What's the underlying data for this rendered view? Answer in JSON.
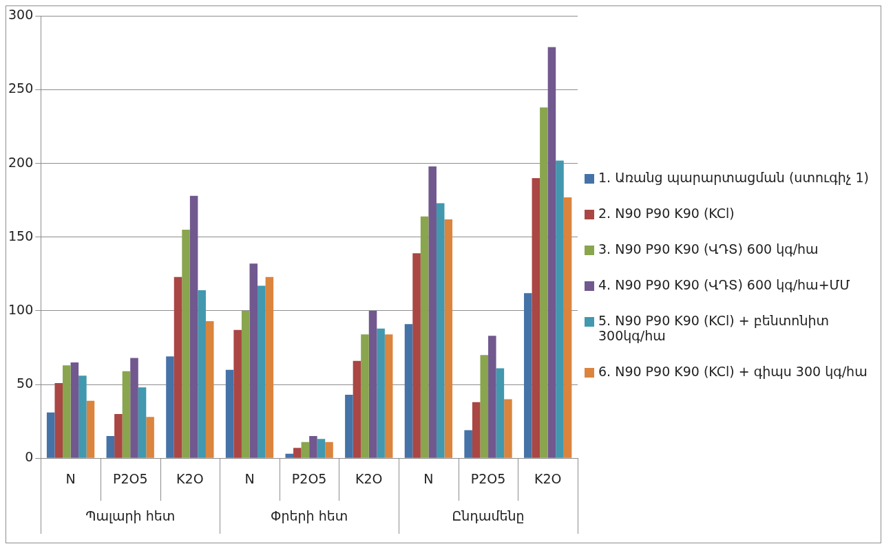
{
  "chart_data": {
    "type": "bar",
    "categories": [
      "N",
      "P2O5",
      "K2O",
      "N",
      "P2O5",
      "K2O",
      "N",
      "P2O5",
      "K2O"
    ],
    "series": [
      {
        "name": "1. Առանց պարարտացման (ստուգիչ 1)",
        "color": "#4572a7",
        "values": [
          31,
          15,
          69,
          60,
          3,
          43,
          91,
          19,
          112
        ]
      },
      {
        "name": "2.   N90 P90 K90 (KCl)",
        "color": "#aa4643",
        "values": [
          51,
          30,
          123,
          87,
          7,
          66,
          139,
          38,
          190
        ]
      },
      {
        "name": "3. N90 P90 K90 (ՎԴՏ) 600 կգ/հա",
        "color": "#89a54e",
        "values": [
          63,
          59,
          155,
          100,
          11,
          84,
          164,
          70,
          238
        ]
      },
      {
        "name": "4. N90 P90 K90 (ՎԴՏ) 600 կգ/հա+ՄՄ",
        "color": "#71588f",
        "values": [
          65,
          68,
          178,
          132,
          15,
          100,
          198,
          83,
          279
        ]
      },
      {
        "name": "5. N90 P90 K90 (KCl) + բենտոնիտ 300կգ/հա",
        "color": "#4198af",
        "values": [
          56,
          48,
          114,
          117,
          13,
          88,
          173,
          61,
          202
        ]
      },
      {
        "name": "6.  N90 P90 K90 (KCl) + գիպս 300 կգ/հա",
        "color": "#db843d",
        "values": [
          39,
          28,
          93,
          123,
          11,
          84,
          162,
          40,
          177
        ]
      }
    ],
    "annotations": [
      "Պալարի հետ",
      "Փրերի հետ",
      "Ընդամենը"
    ],
    "ylim": [
      0,
      300
    ],
    "yticks": [
      0,
      50,
      100,
      150,
      200,
      250,
      300
    ],
    "grid": "y",
    "legend": "right"
  }
}
